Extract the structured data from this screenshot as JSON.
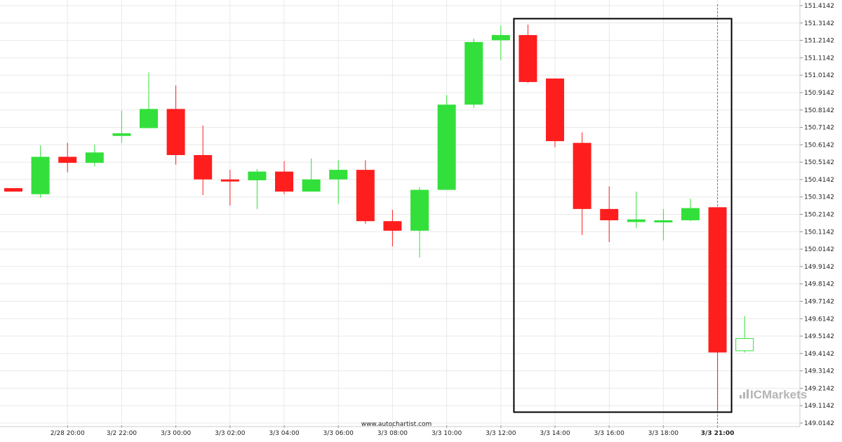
{
  "chart_data": {
    "type": "candlestick",
    "title": "",
    "xlabel": "",
    "ylabel": "",
    "ylim": [
      149.05,
      151.42
    ],
    "y_ticks": [
      "151.4142",
      "151.3142",
      "151.2142",
      "151.1142",
      "151.0142",
      "150.9142",
      "150.8142",
      "150.7142",
      "150.6142",
      "150.5142",
      "150.4142",
      "150.3142",
      "150.2142",
      "150.1142",
      "150.0142",
      "149.9142",
      "149.8142",
      "149.7142",
      "149.6142",
      "149.5142",
      "149.4142",
      "149.3142",
      "149.2142",
      "149.1142",
      "149.0142"
    ],
    "x_ticks": [
      {
        "label": "2/28 20:00",
        "index": 2,
        "bold": false
      },
      {
        "label": "3/2 22:00",
        "index": 4,
        "bold": false
      },
      {
        "label": "3/3 00:00",
        "index": 6,
        "bold": false
      },
      {
        "label": "3/3 02:00",
        "index": 8,
        "bold": false
      },
      {
        "label": "3/3 04:00",
        "index": 10,
        "bold": false
      },
      {
        "label": "3/3 06:00",
        "index": 12,
        "bold": false
      },
      {
        "label": "3/3 08:00",
        "index": 14,
        "bold": false
      },
      {
        "label": "3/3 10:00",
        "index": 16,
        "bold": false
      },
      {
        "label": "3/3 12:00",
        "index": 18,
        "bold": false
      },
      {
        "label": "3/3 14:00",
        "index": 20,
        "bold": false
      },
      {
        "label": "3/3 16:00",
        "index": 22,
        "bold": false
      },
      {
        "label": "3/3 18:00",
        "index": 24,
        "bold": false
      },
      {
        "label": "3/3 21:00",
        "index": 26,
        "bold": true
      }
    ],
    "candles": [
      {
        "open": 150.365,
        "high": 150.365,
        "low": 150.345,
        "close": 150.345
      },
      {
        "open": 150.33,
        "high": 150.61,
        "low": 150.31,
        "close": 150.545
      },
      {
        "open": 150.545,
        "high": 150.625,
        "low": 150.455,
        "close": 150.51
      },
      {
        "open": 150.51,
        "high": 150.615,
        "low": 150.49,
        "close": 150.57
      },
      {
        "open": 150.665,
        "high": 150.81,
        "low": 150.625,
        "close": 150.68
      },
      {
        "open": 150.71,
        "high": 151.03,
        "low": 150.71,
        "close": 150.82
      },
      {
        "open": 150.82,
        "high": 150.955,
        "low": 150.5,
        "close": 150.555
      },
      {
        "open": 150.555,
        "high": 150.725,
        "low": 150.325,
        "close": 150.415
      },
      {
        "open": 150.415,
        "high": 150.47,
        "low": 150.265,
        "close": 150.405
      },
      {
        "open": 150.41,
        "high": 150.475,
        "low": 150.245,
        "close": 150.46
      },
      {
        "open": 150.46,
        "high": 150.52,
        "low": 150.33,
        "close": 150.345
      },
      {
        "open": 150.345,
        "high": 150.535,
        "low": 150.345,
        "close": 150.415
      },
      {
        "open": 150.415,
        "high": 150.525,
        "low": 150.275,
        "close": 150.47
      },
      {
        "open": 150.47,
        "high": 150.525,
        "low": 150.16,
        "close": 150.175
      },
      {
        "open": 150.175,
        "high": 150.24,
        "low": 150.03,
        "close": 150.12
      },
      {
        "open": 150.12,
        "high": 150.37,
        "low": 149.965,
        "close": 150.355
      },
      {
        "open": 150.355,
        "high": 150.9,
        "low": 150.355,
        "close": 150.845
      },
      {
        "open": 150.845,
        "high": 151.225,
        "low": 150.825,
        "close": 151.205
      },
      {
        "open": 151.215,
        "high": 151.3,
        "low": 151.1,
        "close": 151.245
      },
      {
        "open": 151.245,
        "high": 151.305,
        "low": 150.97,
        "close": 150.975
      },
      {
        "open": 150.995,
        "high": 150.995,
        "low": 150.6,
        "close": 150.635
      },
      {
        "open": 150.625,
        "high": 150.685,
        "low": 150.095,
        "close": 150.245
      },
      {
        "open": 150.245,
        "high": 150.375,
        "low": 150.055,
        "close": 150.18
      },
      {
        "open": 150.17,
        "high": 150.345,
        "low": 150.135,
        "close": 150.185
      },
      {
        "open": 150.18,
        "high": 150.245,
        "low": 150.065,
        "close": 150.18
      },
      {
        "open": 150.18,
        "high": 150.305,
        "low": 150.175,
        "close": 150.25
      },
      {
        "open": 150.255,
        "high": 150.255,
        "low": 149.085,
        "close": 149.42
      },
      {
        "open": 149.43,
        "high": 149.63,
        "low": 149.42,
        "close": 149.5,
        "hollow": true
      }
    ],
    "highlight_range": {
      "start_index": 19,
      "end_index": 26,
      "high": 151.315,
      "low": 149.085
    },
    "current_marker_index": 26,
    "grid": true,
    "colors": {
      "up": "#33e03b",
      "down": "#ff1e1e",
      "grid": "#e8e8e8",
      "box": "#000000",
      "brand_bars": "#b5b5b5",
      "brand_text": "#b5b5b5"
    }
  },
  "footer": {
    "source": "www.autochartist.com"
  },
  "brand": {
    "name": "ICMarkets"
  }
}
